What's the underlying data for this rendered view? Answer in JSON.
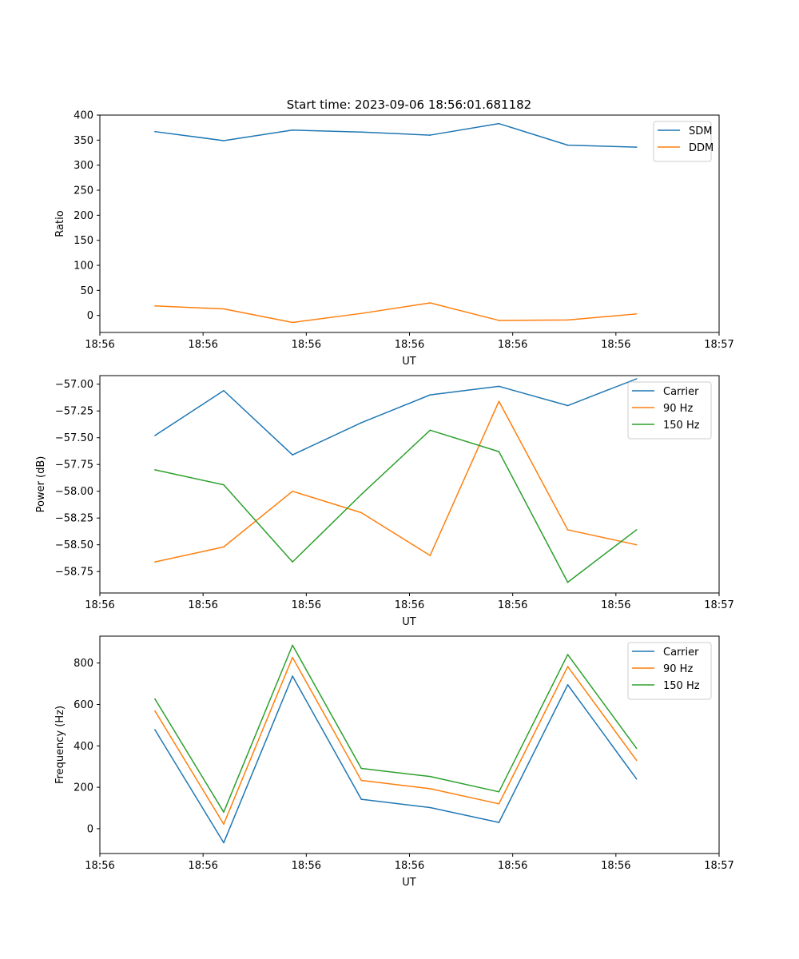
{
  "colors": {
    "blue": "#1f77b4",
    "orange": "#ff7f0e",
    "green": "#2ca02c"
  },
  "chart_data": [
    {
      "type": "line",
      "title": "Start time: 2023-09-06 18:56:01.681182",
      "xlabel": "UT",
      "ylabel": "Ratio",
      "x": [
        1,
        2,
        3,
        4,
        5,
        6,
        7,
        8
      ],
      "xlim": [
        0.2,
        9.2
      ],
      "xticks": [
        0.2,
        1.7,
        3.2,
        4.7,
        6.2,
        7.7,
        9.2
      ],
      "xtick_labels": [
        "18:56",
        "18:56",
        "18:56",
        "18:56",
        "18:56",
        "18:56",
        "18:57"
      ],
      "ylim": [
        -34,
        400
      ],
      "yticks": [
        0,
        50,
        100,
        150,
        200,
        250,
        300,
        350,
        400
      ],
      "ytick_labels": [
        "0",
        "50",
        "100",
        "150",
        "200",
        "250",
        "300",
        "350",
        "400"
      ],
      "legend_position": "top-right",
      "series": [
        {
          "name": "SDM",
          "color": "#1f77b4",
          "values": [
            367,
            349,
            370,
            366,
            360,
            383,
            340,
            336
          ]
        },
        {
          "name": "DDM",
          "color": "#ff7f0e",
          "values": [
            19,
            13,
            -14,
            4,
            25,
            -10,
            -9,
            3
          ]
        }
      ]
    },
    {
      "type": "line",
      "title": "",
      "xlabel": "UT",
      "ylabel": "Power (dB)",
      "x": [
        1,
        2,
        3,
        4,
        5,
        6,
        7,
        8
      ],
      "xlim": [
        0.2,
        9.2
      ],
      "xticks": [
        0.2,
        1.7,
        3.2,
        4.7,
        6.2,
        7.7,
        9.2
      ],
      "xtick_labels": [
        "18:56",
        "18:56",
        "18:56",
        "18:56",
        "18:56",
        "18:56",
        "18:57"
      ],
      "ylim": [
        -58.95,
        -56.92
      ],
      "yticks": [
        -58.75,
        -58.5,
        -58.25,
        -58.0,
        -57.75,
        -57.5,
        -57.25,
        -57.0
      ],
      "ytick_labels": [
        "−58.75",
        "−58.50",
        "−58.25",
        "−58.00",
        "−57.75",
        "−57.50",
        "−57.25",
        "−57.00"
      ],
      "legend_position": "top-right",
      "series": [
        {
          "name": "Carrier",
          "color": "#1f77b4",
          "values": [
            -57.48,
            -57.06,
            -57.66,
            -57.36,
            -57.1,
            -57.02,
            -57.2,
            -56.95
          ]
        },
        {
          "name": "90 Hz",
          "color": "#ff7f0e",
          "values": [
            -58.66,
            -58.52,
            -58.0,
            -58.2,
            -58.6,
            -57.16,
            -58.36,
            -58.5
          ]
        },
        {
          "name": "150 Hz",
          "color": "#2ca02c",
          "values": [
            -57.8,
            -57.94,
            -58.66,
            -58.03,
            -57.43,
            -57.63,
            -58.85,
            -58.36
          ]
        }
      ]
    },
    {
      "type": "line",
      "title": "",
      "xlabel": "UT",
      "ylabel": "Frequency (Hz)",
      "x": [
        1,
        2,
        3,
        4,
        5,
        6,
        7,
        8
      ],
      "xlim": [
        0.2,
        9.2
      ],
      "xticks": [
        0.2,
        1.7,
        3.2,
        4.7,
        6.2,
        7.7,
        9.2
      ],
      "xtick_labels": [
        "18:56",
        "18:56",
        "18:56",
        "18:56",
        "18:56",
        "18:56",
        "18:57"
      ],
      "ylim": [
        -120,
        930
      ],
      "yticks": [
        0,
        200,
        400,
        600,
        800
      ],
      "ytick_labels": [
        "0",
        "200",
        "400",
        "600",
        "800"
      ],
      "legend_position": "top-right",
      "series": [
        {
          "name": "Carrier",
          "color": "#1f77b4",
          "values": [
            478,
            -68,
            737,
            142,
            102,
            30,
            695,
            240
          ]
        },
        {
          "name": "90 Hz",
          "color": "#ff7f0e",
          "values": [
            569,
            22,
            827,
            233,
            193,
            120,
            783,
            330
          ]
        },
        {
          "name": "150 Hz",
          "color": "#2ca02c",
          "values": [
            627,
            80,
            886,
            291,
            252,
            178,
            841,
            388
          ]
        }
      ]
    }
  ]
}
